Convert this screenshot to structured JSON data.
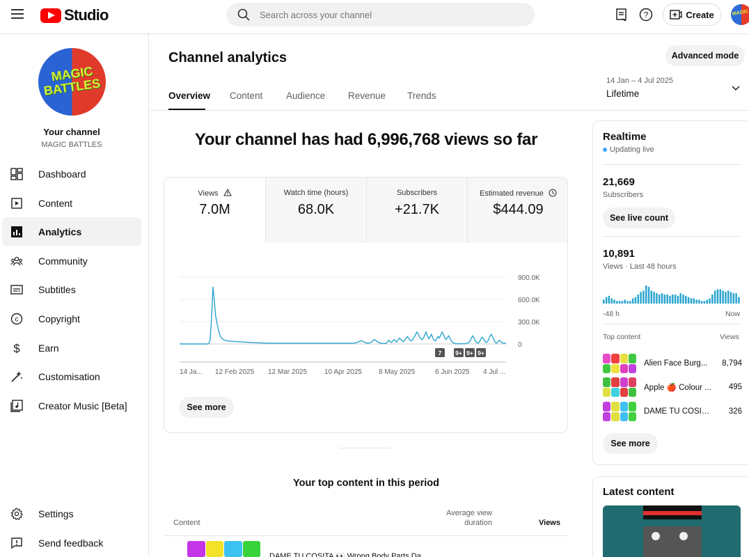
{
  "topbar": {
    "logo_text": "Studio",
    "search_placeholder": "Search across your channel",
    "create_label": "Create",
    "icons": [
      "menu-icon",
      "search-icon",
      "comments-icon",
      "help-icon",
      "create-icon"
    ]
  },
  "sidebar": {
    "your_channel_label": "Your channel",
    "channel_name": "MAGIC BATTLES",
    "avatar_text_line1": "MAGIC",
    "avatar_text_line2": "BATTLES",
    "items": [
      {
        "label": "Dashboard",
        "icon": "dashboard-icon"
      },
      {
        "label": "Content",
        "icon": "content-icon"
      },
      {
        "label": "Analytics",
        "icon": "analytics-icon",
        "active": true
      },
      {
        "label": "Community",
        "icon": "community-icon"
      },
      {
        "label": "Subtitles",
        "icon": "subtitles-icon"
      },
      {
        "label": "Copyright",
        "icon": "copyright-icon"
      },
      {
        "label": "Earn",
        "icon": "earn-icon"
      },
      {
        "label": "Customisation",
        "icon": "customisation-icon"
      },
      {
        "label": "Creator Music [Beta]",
        "icon": "music-icon"
      }
    ],
    "bottom_items": [
      {
        "label": "Settings",
        "icon": "settings-icon"
      },
      {
        "label": "Send feedback",
        "icon": "feedback-icon"
      }
    ]
  },
  "header": {
    "title": "Channel analytics",
    "advanced_mode_label": "Advanced mode",
    "tabs": [
      "Overview",
      "Content",
      "Audience",
      "Revenue",
      "Trends"
    ],
    "active_tab": "Overview",
    "date_range": "14 Jan – 4 Jul 2025",
    "date_label": "Lifetime"
  },
  "main": {
    "headline": "Your channel has had 6,996,768 views so far",
    "metrics": [
      {
        "label": "Views",
        "value": "7.0M",
        "icon": "warning-icon"
      },
      {
        "label": "Watch time (hours)",
        "value": "68.0K"
      },
      {
        "label": "Subscribers",
        "value": "+21.7K"
      },
      {
        "label": "Estimated revenue",
        "value": "$444.09",
        "icon": "clock-icon"
      }
    ],
    "see_more_label": "See more",
    "top_content_title": "Your top content in this period",
    "table_headers": {
      "content": "Content",
      "avg_view_duration_line1": "Average view",
      "avg_view_duration_line2": "duration",
      "views": "Views"
    },
    "first_row_title": "DAME TU COSITA 👀 Wrong Body Parts Da"
  },
  "chart_data": {
    "type": "line",
    "x_tick_labels": [
      "14 Ja...",
      "12 Feb 2025",
      "12 Mar 2025",
      "10 Apr 2025",
      "8 May 2025",
      "6 Jun 2025",
      "4 Jul ..."
    ],
    "y_tick_labels": [
      "900.0K",
      "600.0K",
      "300.0K",
      "0"
    ],
    "ylim": [
      0,
      900000
    ],
    "series": [
      {
        "color": "#2aa5cf",
        "values": [
          0,
          0,
          0,
          0,
          0,
          0,
          0,
          0,
          0,
          0,
          0,
          0,
          0,
          0,
          0,
          0,
          0,
          0,
          0,
          0,
          0,
          0,
          5000,
          60000,
          350000,
          770000,
          600000,
          380000,
          290000,
          200000,
          130000,
          90000,
          70000,
          60000,
          50000,
          45000,
          42000,
          40000,
          38000,
          36000,
          35000,
          33000,
          32000,
          31000,
          30000,
          29000,
          28000,
          27000,
          26000,
          25000,
          24000,
          23000,
          22000,
          21000,
          20000,
          19000,
          18000,
          17000,
          16000,
          15000,
          14000,
          13500,
          13000,
          12500,
          12000,
          11500,
          11000,
          10500,
          10000,
          10000,
          10000,
          10000,
          10000,
          10000,
          10000,
          10000,
          10000,
          10000,
          10000,
          10000,
          10000,
          10000,
          10000,
          10000,
          10000,
          10000,
          10000,
          10000,
          10000,
          10000,
          10000,
          10000,
          10000,
          10000,
          10000,
          10000,
          10000,
          10000,
          10000,
          10000,
          10000,
          10000,
          10000,
          10000,
          10000,
          10000,
          10000,
          10000,
          10000,
          10000,
          10000,
          10000,
          10000,
          10000,
          10000,
          10000,
          10000,
          10000,
          10000,
          10000,
          10000,
          10000,
          10000,
          10000,
          10000,
          10000,
          10000,
          10000,
          10000,
          10000,
          10000,
          12000,
          15000,
          20000,
          25000,
          35000,
          45000,
          40000,
          30000,
          20000,
          15000,
          10000,
          12000,
          18000,
          25000,
          40000,
          60000,
          50000,
          35000,
          25000,
          15000,
          10000,
          8000,
          6000,
          5000,
          10000,
          25000,
          50000,
          30000,
          20000,
          40000,
          60000,
          40000,
          25000,
          55000,
          80000,
          60000,
          40000,
          30000,
          50000,
          80000,
          100000,
          70000,
          50000,
          40000,
          60000,
          90000,
          120000,
          160000,
          140000,
          100000,
          70000,
          60000,
          80000,
          120000,
          160000,
          110000,
          70000,
          100000,
          130000,
          80000,
          50000,
          40000,
          70000,
          100000,
          80000,
          120000,
          160000,
          130000,
          80000,
          60000,
          90000,
          110000,
          70000,
          40000,
          20000,
          10000,
          5000,
          3000,
          3000,
          3000,
          3000,
          3000,
          3000,
          3000,
          5000,
          10000,
          20000,
          40000,
          80000,
          110000,
          80000,
          40000,
          20000,
          10000,
          30000,
          60000,
          90000,
          70000,
          40000,
          20000,
          30000,
          60000,
          110000,
          130000,
          90000,
          50000,
          20000,
          10000,
          30000,
          50000,
          30000,
          15000,
          10000,
          8000,
          6000
        ]
      }
    ],
    "markers": [
      "7",
      "9+",
      "9+",
      "9+"
    ],
    "grid": true
  },
  "realtime": {
    "title": "Realtime",
    "live_label": "Updating live",
    "subscribers_value": "21,669",
    "subscribers_label": "Subscribers",
    "see_live_label": "See live count",
    "views_value": "10,891",
    "views_label": "Views · Last 48 hours",
    "bar_start_label": "-48 h",
    "bar_end_label": "Now",
    "bars": [
      3,
      5,
      6,
      4,
      3,
      2,
      2,
      2,
      3,
      2,
      2,
      4,
      5,
      7,
      9,
      10,
      14,
      13,
      10,
      9,
      8,
      7,
      8,
      7,
      7,
      6,
      7,
      7,
      6,
      8,
      7,
      6,
      5,
      4,
      4,
      3,
      3,
      2,
      2,
      3,
      4,
      7,
      10,
      11,
      11,
      10,
      9,
      10,
      9,
      8,
      8,
      5
    ],
    "top_content_label": "Top content",
    "views_col_label": "Views",
    "top_content": [
      {
        "title": "Alien Face Burg...",
        "views": "8,794"
      },
      {
        "title": "Apple 🍎 Colour ...",
        "views": "495"
      },
      {
        "title": "DAME TU COSITA...",
        "views": "326"
      }
    ],
    "see_more_label": "See more"
  },
  "latest": {
    "title": "Latest content"
  }
}
